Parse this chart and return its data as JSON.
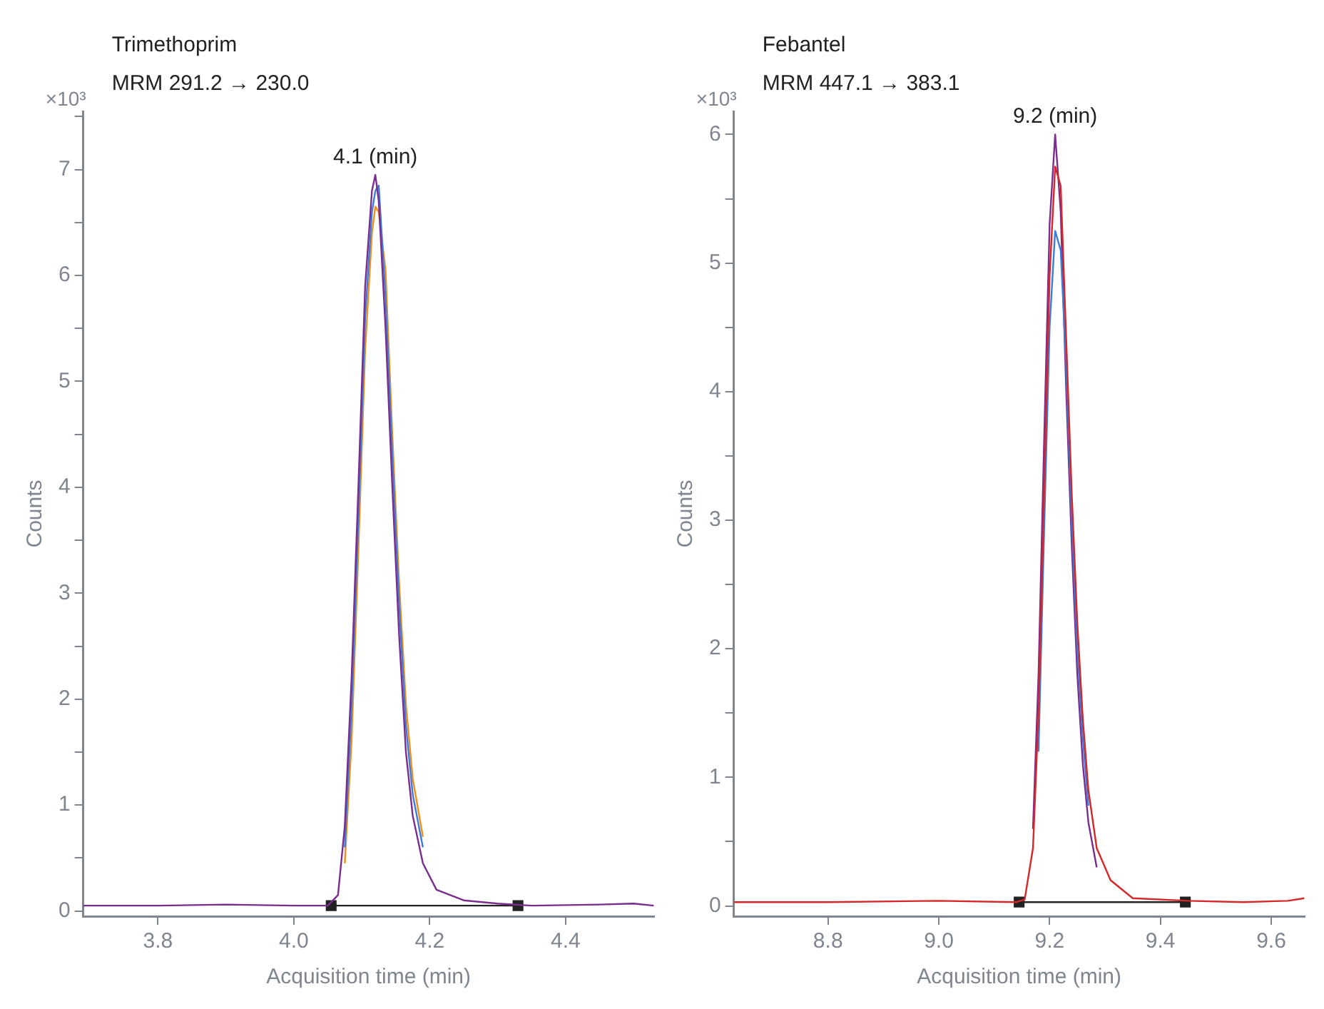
{
  "chart_data": [
    {
      "type": "line",
      "title": "Trimethoprim",
      "subtitle": "MRM 291.2 → 230.0",
      "xlabel": "Acquisition time (min)",
      "ylabel": "Counts",
      "annotations": [
        "×10³",
        {
          "text": "4.1 (min)",
          "x": 4.12,
          "y": 6.95
        }
      ],
      "x": [
        3.69,
        3.8,
        3.9,
        4.0,
        4.05,
        4.065,
        4.075,
        4.085,
        4.095,
        4.105,
        4.115,
        4.12,
        4.125,
        4.135,
        4.145,
        4.155,
        4.165,
        4.175,
        4.19,
        4.21,
        4.25,
        4.3,
        4.35,
        4.45,
        4.5,
        4.53
      ],
      "series": [
        {
          "color": "#7b2d8e",
          "values": [
            0.05,
            0.05,
            0.06,
            0.05,
            0.05,
            0.15,
            0.8,
            2.2,
            4.0,
            5.9,
            6.8,
            6.95,
            6.7,
            5.5,
            4.0,
            2.6,
            1.5,
            0.9,
            0.45,
            0.2,
            0.1,
            0.07,
            0.05,
            0.06,
            0.07,
            0.05
          ]
        },
        {
          "color": "#3b7dd8",
          "values": [
            null,
            null,
            null,
            null,
            null,
            null,
            0.6,
            1.9,
            3.7,
            5.6,
            6.6,
            6.8,
            6.85,
            5.8,
            4.3,
            2.9,
            1.75,
            1.1,
            0.6,
            null,
            null,
            null,
            null,
            null,
            null,
            null
          ]
        },
        {
          "color": "#f28e1c",
          "values": [
            null,
            null,
            null,
            null,
            null,
            null,
            0.45,
            1.6,
            3.4,
            5.3,
            6.4,
            6.65,
            6.6,
            6.05,
            4.5,
            3.1,
            1.95,
            1.25,
            0.7,
            null,
            null,
            null,
            null,
            null,
            null,
            null
          ]
        },
        {
          "color": "#222222",
          "marker": "square",
          "x": [
            4.055,
            4.33
          ],
          "values": [
            0.05,
            0.05
          ]
        }
      ],
      "xlim": [
        3.69,
        4.53
      ],
      "xticks": [
        3.8,
        {
          "value": 4,
          "label": "4.0"
        },
        4.2,
        4.4
      ],
      "ylim": [
        -0.05,
        7.55
      ],
      "yticks": [
        0,
        {
          "value": 0.5,
          "label": null
        },
        1,
        {
          "value": 1.5,
          "label": null
        },
        2,
        {
          "value": 2.5,
          "label": null
        },
        3,
        {
          "value": 3.5,
          "label": null
        },
        4,
        {
          "value": 4.5,
          "label": null
        },
        5,
        {
          "value": 5.5,
          "label": null
        },
        6,
        {
          "value": 6.5,
          "label": null
        },
        7,
        {
          "value": 7.5,
          "label": null
        }
      ],
      "grid": false,
      "legend": false,
      "marker": "none"
    },
    {
      "type": "line",
      "title": "Febantel",
      "subtitle": "MRM 447.1 → 383.1",
      "xlabel": "Acquisition time (min)",
      "ylabel": "Counts",
      "annotations": [
        "×10³",
        {
          "text": "9.2 (min)",
          "x": 9.21,
          "y": 6.0
        }
      ],
      "x": [
        8.63,
        8.8,
        9.0,
        9.14,
        9.155,
        9.17,
        9.18,
        9.19,
        9.2,
        9.21,
        9.22,
        9.23,
        9.24,
        9.25,
        9.26,
        9.27,
        9.285,
        9.31,
        9.35,
        9.45,
        9.55,
        9.63,
        9.66
      ],
      "series": [
        {
          "color": "#d62728",
          "values": [
            0.03,
            0.03,
            0.04,
            0.03,
            0.05,
            0.45,
            1.5,
            3.2,
            4.9,
            5.75,
            5.6,
            4.4,
            3.2,
            2.2,
            1.45,
            0.9,
            0.45,
            0.2,
            0.06,
            0.04,
            0.03,
            0.04,
            0.06
          ]
        },
        {
          "color": "#3b7dd8",
          "values": [
            null,
            null,
            null,
            null,
            null,
            null,
            1.2,
            2.9,
            4.5,
            5.25,
            5.1,
            4.2,
            3.0,
            2.0,
            1.3,
            0.78,
            null,
            null,
            null,
            null,
            null,
            null,
            null
          ]
        },
        {
          "color": "#7b2d8e",
          "values": [
            null,
            null,
            null,
            null,
            null,
            0.6,
            1.8,
            3.6,
            5.3,
            6.0,
            5.4,
            4.0,
            2.8,
            1.8,
            1.1,
            0.65,
            0.3,
            null,
            null,
            null,
            null,
            null,
            null
          ]
        },
        {
          "color": "#222222",
          "marker": "square",
          "x": [
            9.145,
            9.445
          ],
          "values": [
            0.03,
            0.03
          ]
        }
      ],
      "xlim": [
        8.63,
        9.66
      ],
      "xticks": [
        8.8,
        {
          "value": 9,
          "label": "9.0"
        },
        9.2,
        9.4,
        9.6
      ],
      "ylim": [
        -0.08,
        6.18
      ],
      "yticks": [
        0,
        {
          "value": 0.5,
          "label": null
        },
        1,
        {
          "value": 1.5,
          "label": null
        },
        2,
        {
          "value": 2.5,
          "label": null
        },
        3,
        {
          "value": 3.5,
          "label": null
        },
        4,
        {
          "value": 4.5,
          "label": null
        },
        5,
        {
          "value": 5.5,
          "label": null
        },
        6
      ],
      "grid": false,
      "legend": false,
      "marker": "none"
    }
  ]
}
